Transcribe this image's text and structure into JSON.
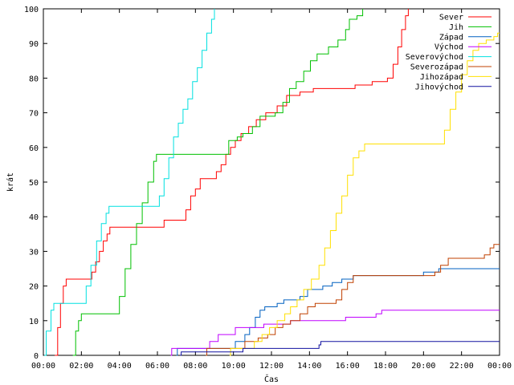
{
  "chart_data": {
    "type": "line",
    "xlabel": "Čas",
    "ylabel": "krát",
    "ylim": [
      0,
      100
    ],
    "xlim": [
      0,
      24
    ],
    "yticks": [
      0,
      10,
      20,
      30,
      40,
      50,
      60,
      70,
      80,
      90,
      100
    ],
    "xticks": [
      {
        "value": 0,
        "label": "00:00"
      },
      {
        "value": 2,
        "label": "02:00"
      },
      {
        "value": 4,
        "label": "04:00"
      },
      {
        "value": 6,
        "label": "06:00"
      },
      {
        "value": 8,
        "label": "08:00"
      },
      {
        "value": 10,
        "label": "10:00"
      },
      {
        "value": 12,
        "label": "12:00"
      },
      {
        "value": 14,
        "label": "14:00"
      },
      {
        "value": 16,
        "label": "16:00"
      },
      {
        "value": 18,
        "label": "18:00"
      },
      {
        "value": 20,
        "label": "20:00"
      },
      {
        "value": 22,
        "label": "22:00"
      },
      {
        "value": 24,
        "label": "00:00"
      }
    ],
    "grid": false,
    "legend": "top-right",
    "series": [
      {
        "name": "Sever",
        "color": "#ff0000",
        "points": [
          [
            0.6,
            0
          ],
          [
            0.75,
            8
          ],
          [
            0.9,
            15
          ],
          [
            1.05,
            20
          ],
          [
            1.2,
            22
          ],
          [
            2.3,
            22
          ],
          [
            2.55,
            24
          ],
          [
            2.75,
            27
          ],
          [
            2.95,
            30
          ],
          [
            3.15,
            33
          ],
          [
            3.35,
            35
          ],
          [
            3.5,
            37
          ],
          [
            6.2,
            37
          ],
          [
            6.35,
            39
          ],
          [
            7.2,
            39
          ],
          [
            7.5,
            42
          ],
          [
            7.75,
            46
          ],
          [
            8.0,
            48
          ],
          [
            8.25,
            51
          ],
          [
            8.8,
            51
          ],
          [
            9.1,
            53
          ],
          [
            9.35,
            55
          ],
          [
            9.6,
            58
          ],
          [
            9.85,
            60
          ],
          [
            10.1,
            62
          ],
          [
            10.4,
            64
          ],
          [
            10.8,
            66
          ],
          [
            11.2,
            68
          ],
          [
            11.7,
            70
          ],
          [
            12.3,
            72
          ],
          [
            12.8,
            75
          ],
          [
            13.5,
            76
          ],
          [
            14.2,
            77
          ],
          [
            16.4,
            78
          ],
          [
            17.3,
            79
          ],
          [
            18.1,
            80
          ],
          [
            18.4,
            84
          ],
          [
            18.65,
            89
          ],
          [
            18.85,
            94
          ],
          [
            19.05,
            98
          ],
          [
            19.2,
            100
          ]
        ]
      },
      {
        "name": "Jih",
        "color": "#00c000",
        "points": [
          [
            1.55,
            0
          ],
          [
            1.7,
            7
          ],
          [
            1.85,
            10
          ],
          [
            2.0,
            12
          ],
          [
            3.8,
            12
          ],
          [
            4.0,
            17
          ],
          [
            4.3,
            25
          ],
          [
            4.6,
            32
          ],
          [
            4.9,
            38
          ],
          [
            5.2,
            44
          ],
          [
            5.5,
            50
          ],
          [
            5.8,
            56
          ],
          [
            5.95,
            58
          ],
          [
            9.4,
            58
          ],
          [
            9.75,
            62
          ],
          [
            10.2,
            63
          ],
          [
            10.5,
            64
          ],
          [
            11.0,
            66
          ],
          [
            11.4,
            69
          ],
          [
            12.2,
            70
          ],
          [
            12.6,
            73
          ],
          [
            12.95,
            77
          ],
          [
            13.3,
            79
          ],
          [
            13.7,
            82
          ],
          [
            14.05,
            85
          ],
          [
            14.4,
            87
          ],
          [
            15.0,
            89
          ],
          [
            15.5,
            91
          ],
          [
            15.9,
            94
          ],
          [
            16.1,
            97
          ],
          [
            16.5,
            98
          ],
          [
            16.8,
            100
          ]
        ]
      },
      {
        "name": "Západ",
        "color": "#0060c0",
        "points": [
          [
            7.0,
            0
          ],
          [
            7.05,
            2
          ],
          [
            9.9,
            2
          ],
          [
            10.1,
            4
          ],
          [
            10.6,
            6
          ],
          [
            10.85,
            8
          ],
          [
            11.15,
            11
          ],
          [
            11.4,
            13
          ],
          [
            11.65,
            14
          ],
          [
            12.3,
            15
          ],
          [
            12.65,
            16
          ],
          [
            13.1,
            16
          ],
          [
            13.5,
            17
          ],
          [
            13.9,
            19
          ],
          [
            14.7,
            20
          ],
          [
            15.2,
            21
          ],
          [
            15.7,
            22
          ],
          [
            16.3,
            23
          ],
          [
            20.0,
            24
          ],
          [
            20.8,
            25
          ],
          [
            24.0,
            25
          ]
        ]
      },
      {
        "name": "Východ",
        "color": "#c000ff",
        "points": [
          [
            6.7,
            0
          ],
          [
            6.75,
            2
          ],
          [
            8.5,
            2
          ],
          [
            8.75,
            4
          ],
          [
            9.2,
            6
          ],
          [
            10.1,
            8
          ],
          [
            11.6,
            9
          ],
          [
            12.5,
            9
          ],
          [
            13.0,
            10
          ],
          [
            15.2,
            10
          ],
          [
            15.9,
            11
          ],
          [
            17.5,
            12
          ],
          [
            17.8,
            13
          ],
          [
            24.0,
            13
          ]
        ]
      },
      {
        "name": "Severovýchod",
        "color": "#00e0e0",
        "points": [
          [
            0.05,
            0
          ],
          [
            0.15,
            7
          ],
          [
            0.4,
            13
          ],
          [
            0.55,
            15
          ],
          [
            2.0,
            15
          ],
          [
            2.25,
            20
          ],
          [
            2.5,
            26
          ],
          [
            2.8,
            33
          ],
          [
            3.05,
            38
          ],
          [
            3.3,
            41
          ],
          [
            3.45,
            43
          ],
          [
            5.9,
            43
          ],
          [
            6.1,
            46
          ],
          [
            6.35,
            51
          ],
          [
            6.6,
            57
          ],
          [
            6.85,
            63
          ],
          [
            7.1,
            67
          ],
          [
            7.35,
            71
          ],
          [
            7.6,
            74
          ],
          [
            7.85,
            79
          ],
          [
            8.1,
            83
          ],
          [
            8.35,
            88
          ],
          [
            8.6,
            93
          ],
          [
            8.85,
            97
          ],
          [
            9.0,
            100
          ]
        ]
      },
      {
        "name": "Severozápad",
        "color": "#c04000",
        "points": [
          [
            8.55,
            0
          ],
          [
            8.6,
            2
          ],
          [
            10.1,
            2
          ],
          [
            10.6,
            4
          ],
          [
            11.3,
            5
          ],
          [
            11.8,
            6
          ],
          [
            12.2,
            8
          ],
          [
            12.6,
            9
          ],
          [
            13.0,
            10
          ],
          [
            13.5,
            12
          ],
          [
            13.9,
            14
          ],
          [
            14.3,
            15
          ],
          [
            15.4,
            16
          ],
          [
            15.7,
            19
          ],
          [
            16.0,
            21
          ],
          [
            16.3,
            23
          ],
          [
            20.6,
            24
          ],
          [
            20.9,
            26
          ],
          [
            21.3,
            28
          ],
          [
            23.2,
            29
          ],
          [
            23.5,
            31
          ],
          [
            23.7,
            32
          ],
          [
            24.0,
            32
          ]
        ]
      },
      {
        "name": "Jihozápad",
        "color": "#ffe000",
        "points": [
          [
            9.8,
            0
          ],
          [
            9.85,
            2
          ],
          [
            10.8,
            2
          ],
          [
            11.1,
            4
          ],
          [
            11.5,
            6
          ],
          [
            11.9,
            8
          ],
          [
            12.3,
            10
          ],
          [
            12.7,
            12
          ],
          [
            13.0,
            14
          ],
          [
            13.35,
            16
          ],
          [
            13.7,
            19
          ],
          [
            14.1,
            22
          ],
          [
            14.5,
            26
          ],
          [
            14.8,
            31
          ],
          [
            15.1,
            36
          ],
          [
            15.4,
            41
          ],
          [
            15.7,
            46
          ],
          [
            16.0,
            52
          ],
          [
            16.3,
            57
          ],
          [
            16.6,
            59
          ],
          [
            16.9,
            61
          ],
          [
            20.8,
            61
          ],
          [
            21.1,
            65
          ],
          [
            21.4,
            71
          ],
          [
            21.7,
            76
          ],
          [
            22.0,
            81
          ],
          [
            22.3,
            85
          ],
          [
            22.6,
            88
          ],
          [
            22.9,
            90
          ],
          [
            23.3,
            91
          ],
          [
            23.7,
            92
          ],
          [
            23.9,
            93
          ],
          [
            24.0,
            93
          ]
        ]
      },
      {
        "name": "Jihovýchod",
        "color": "#1010a0",
        "points": [
          [
            7.2,
            0
          ],
          [
            7.25,
            1
          ],
          [
            10.4,
            1
          ],
          [
            10.5,
            2
          ],
          [
            14.3,
            2
          ],
          [
            14.5,
            3
          ],
          [
            14.6,
            4
          ],
          [
            24.0,
            4
          ]
        ]
      }
    ]
  }
}
